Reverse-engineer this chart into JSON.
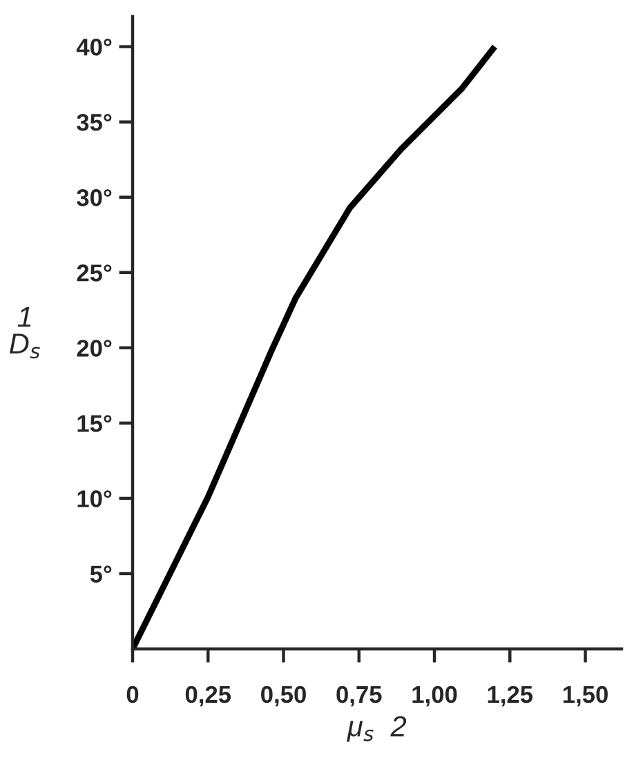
{
  "chart_data": {
    "type": "line",
    "xlabel": "μ$_{s}$  2",
    "ylabel": "1\nD$_{s}$",
    "series": [
      {
        "color": "#000000",
        "x": [
          0,
          0.25,
          0.46,
          0.54,
          0.72,
          0.89,
          1.09,
          1.2
        ],
        "values": [
          0,
          10.1,
          19.8,
          23.3,
          29.3,
          33.2,
          37.2,
          40
        ]
      }
    ],
    "xlim": [
      0,
      1.62
    ],
    "ylim": [
      0,
      42
    ],
    "xticks": [
      {
        "value": 0,
        "label": "0"
      },
      {
        "value": 0.25,
        "label": "0,25"
      },
      {
        "value": 0.5,
        "label": "0,50"
      },
      {
        "value": 0.75,
        "label": "0,75"
      },
      {
        "value": 1.0,
        "label": "1,00"
      },
      {
        "value": 1.25,
        "label": "1,25"
      },
      {
        "value": 1.5,
        "label": "1,50"
      }
    ],
    "yticks": [
      {
        "value": 5,
        "label": "5°"
      },
      {
        "value": 10,
        "label": "10°"
      },
      {
        "value": 15,
        "label": "15°"
      },
      {
        "value": 20,
        "label": "20°"
      },
      {
        "value": 25,
        "label": "25°"
      },
      {
        "value": 30,
        "label": "30°"
      },
      {
        "value": 35,
        "label": "35°"
      },
      {
        "value": 40,
        "label": "40°"
      }
    ],
    "grid": false,
    "legend": false,
    "marker": "none",
    "line_style": "solid"
  }
}
